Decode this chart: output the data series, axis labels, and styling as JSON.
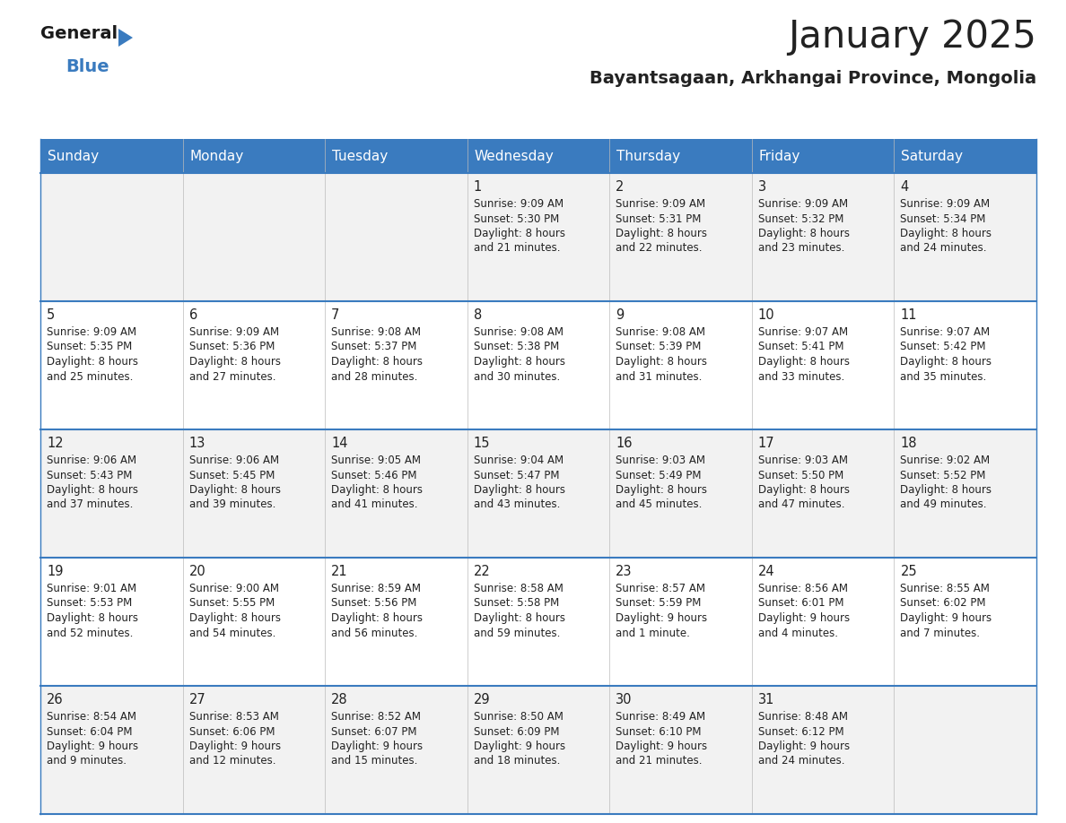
{
  "title": "January 2025",
  "subtitle": "Bayantsagaan, Arkhangai Province, Mongolia",
  "header_color": "#3a7bbf",
  "header_text_color": "#ffffff",
  "cell_bg_color": "#f2f2f2",
  "cell_bg_white": "#ffffff",
  "border_color": "#3a7bbf",
  "text_color": "#222222",
  "days_of_week": [
    "Sunday",
    "Monday",
    "Tuesday",
    "Wednesday",
    "Thursday",
    "Friday",
    "Saturday"
  ],
  "weeks": [
    [
      {
        "day": null,
        "sunrise": null,
        "sunset": null,
        "daylight": null
      },
      {
        "day": null,
        "sunrise": null,
        "sunset": null,
        "daylight": null
      },
      {
        "day": null,
        "sunrise": null,
        "sunset": null,
        "daylight": null
      },
      {
        "day": 1,
        "sunrise": "9:09 AM",
        "sunset": "5:30 PM",
        "daylight": "8 hours\nand 21 minutes."
      },
      {
        "day": 2,
        "sunrise": "9:09 AM",
        "sunset": "5:31 PM",
        "daylight": "8 hours\nand 22 minutes."
      },
      {
        "day": 3,
        "sunrise": "9:09 AM",
        "sunset": "5:32 PM",
        "daylight": "8 hours\nand 23 minutes."
      },
      {
        "day": 4,
        "sunrise": "9:09 AM",
        "sunset": "5:34 PM",
        "daylight": "8 hours\nand 24 minutes."
      }
    ],
    [
      {
        "day": 5,
        "sunrise": "9:09 AM",
        "sunset": "5:35 PM",
        "daylight": "8 hours\nand 25 minutes."
      },
      {
        "day": 6,
        "sunrise": "9:09 AM",
        "sunset": "5:36 PM",
        "daylight": "8 hours\nand 27 minutes."
      },
      {
        "day": 7,
        "sunrise": "9:08 AM",
        "sunset": "5:37 PM",
        "daylight": "8 hours\nand 28 minutes."
      },
      {
        "day": 8,
        "sunrise": "9:08 AM",
        "sunset": "5:38 PM",
        "daylight": "8 hours\nand 30 minutes."
      },
      {
        "day": 9,
        "sunrise": "9:08 AM",
        "sunset": "5:39 PM",
        "daylight": "8 hours\nand 31 minutes."
      },
      {
        "day": 10,
        "sunrise": "9:07 AM",
        "sunset": "5:41 PM",
        "daylight": "8 hours\nand 33 minutes."
      },
      {
        "day": 11,
        "sunrise": "9:07 AM",
        "sunset": "5:42 PM",
        "daylight": "8 hours\nand 35 minutes."
      }
    ],
    [
      {
        "day": 12,
        "sunrise": "9:06 AM",
        "sunset": "5:43 PM",
        "daylight": "8 hours\nand 37 minutes."
      },
      {
        "day": 13,
        "sunrise": "9:06 AM",
        "sunset": "5:45 PM",
        "daylight": "8 hours\nand 39 minutes."
      },
      {
        "day": 14,
        "sunrise": "9:05 AM",
        "sunset": "5:46 PM",
        "daylight": "8 hours\nand 41 minutes."
      },
      {
        "day": 15,
        "sunrise": "9:04 AM",
        "sunset": "5:47 PM",
        "daylight": "8 hours\nand 43 minutes."
      },
      {
        "day": 16,
        "sunrise": "9:03 AM",
        "sunset": "5:49 PM",
        "daylight": "8 hours\nand 45 minutes."
      },
      {
        "day": 17,
        "sunrise": "9:03 AM",
        "sunset": "5:50 PM",
        "daylight": "8 hours\nand 47 minutes."
      },
      {
        "day": 18,
        "sunrise": "9:02 AM",
        "sunset": "5:52 PM",
        "daylight": "8 hours\nand 49 minutes."
      }
    ],
    [
      {
        "day": 19,
        "sunrise": "9:01 AM",
        "sunset": "5:53 PM",
        "daylight": "8 hours\nand 52 minutes."
      },
      {
        "day": 20,
        "sunrise": "9:00 AM",
        "sunset": "5:55 PM",
        "daylight": "8 hours\nand 54 minutes."
      },
      {
        "day": 21,
        "sunrise": "8:59 AM",
        "sunset": "5:56 PM",
        "daylight": "8 hours\nand 56 minutes."
      },
      {
        "day": 22,
        "sunrise": "8:58 AM",
        "sunset": "5:58 PM",
        "daylight": "8 hours\nand 59 minutes."
      },
      {
        "day": 23,
        "sunrise": "8:57 AM",
        "sunset": "5:59 PM",
        "daylight": "9 hours\nand 1 minute."
      },
      {
        "day": 24,
        "sunrise": "8:56 AM",
        "sunset": "6:01 PM",
        "daylight": "9 hours\nand 4 minutes."
      },
      {
        "day": 25,
        "sunrise": "8:55 AM",
        "sunset": "6:02 PM",
        "daylight": "9 hours\nand 7 minutes."
      }
    ],
    [
      {
        "day": 26,
        "sunrise": "8:54 AM",
        "sunset": "6:04 PM",
        "daylight": "9 hours\nand 9 minutes."
      },
      {
        "day": 27,
        "sunrise": "8:53 AM",
        "sunset": "6:06 PM",
        "daylight": "9 hours\nand 12 minutes."
      },
      {
        "day": 28,
        "sunrise": "8:52 AM",
        "sunset": "6:07 PM",
        "daylight": "9 hours\nand 15 minutes."
      },
      {
        "day": 29,
        "sunrise": "8:50 AM",
        "sunset": "6:09 PM",
        "daylight": "9 hours\nand 18 minutes."
      },
      {
        "day": 30,
        "sunrise": "8:49 AM",
        "sunset": "6:10 PM",
        "daylight": "9 hours\nand 21 minutes."
      },
      {
        "day": 31,
        "sunrise": "8:48 AM",
        "sunset": "6:12 PM",
        "daylight": "9 hours\nand 24 minutes."
      },
      {
        "day": null,
        "sunrise": null,
        "sunset": null,
        "daylight": null
      }
    ]
  ],
  "logo_general_color": "#1a1a1a",
  "logo_blue_color": "#3a7bbf",
  "logo_triangle_color": "#3a7bbf"
}
